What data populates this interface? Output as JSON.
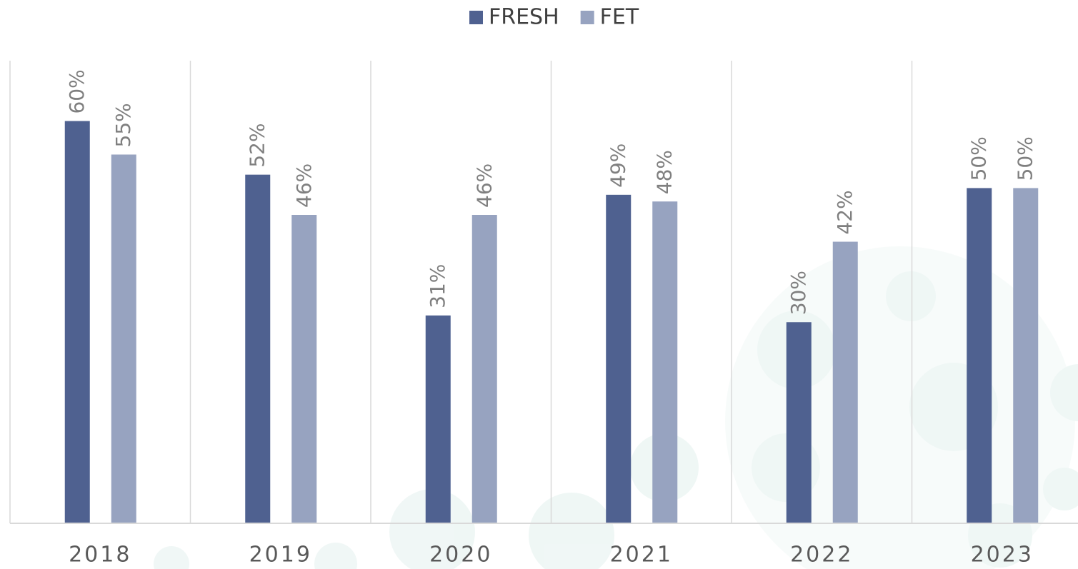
{
  "chart_data": {
    "type": "bar",
    "categories": [
      "2018",
      "2019",
      "2020",
      "2021",
      "2022",
      "2023"
    ],
    "series": [
      {
        "name": "FRESH",
        "color": "#4f6190",
        "values": [
          60,
          52,
          31,
          49,
          30,
          50
        ],
        "value_labels": [
          "60%",
          "52%",
          "31%",
          "49%",
          "30%",
          "50%"
        ]
      },
      {
        "name": "FET",
        "color": "#97a3c0",
        "values": [
          55,
          46,
          46,
          48,
          42,
          50
        ],
        "value_labels": [
          "55%",
          "46%",
          "46%",
          "48%",
          "42%",
          "50%"
        ]
      }
    ],
    "ylim": [
      0,
      69
    ],
    "legend": "top"
  }
}
